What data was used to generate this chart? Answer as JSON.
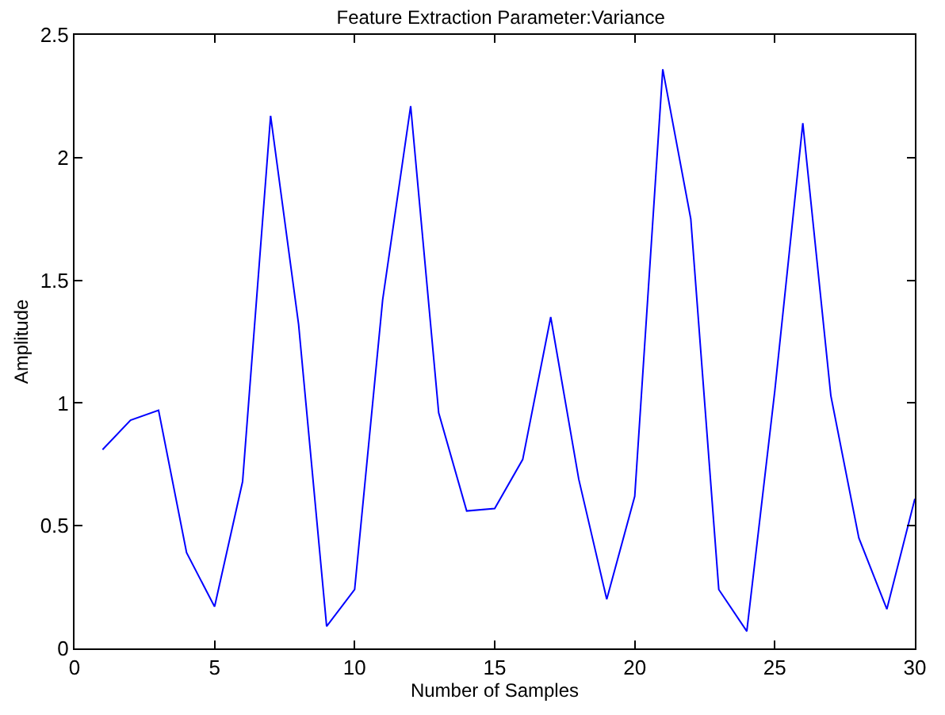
{
  "chart_data": {
    "type": "line",
    "title": "Feature Extraction Parameter:Variance",
    "xlabel": "Number of Samples",
    "ylabel": "Amplitude",
    "x": [
      1,
      2,
      3,
      4,
      5,
      6,
      7,
      8,
      9,
      10,
      11,
      12,
      13,
      14,
      15,
      16,
      17,
      18,
      19,
      20,
      21,
      22,
      23,
      24,
      25,
      26,
      27,
      28,
      29,
      30
    ],
    "series": [
      {
        "color": "#0000ff",
        "values": [
          0.81,
          0.93,
          0.97,
          0.39,
          0.17,
          0.68,
          2.17,
          1.32,
          0.09,
          0.24,
          1.42,
          2.21,
          0.96,
          0.56,
          0.57,
          0.77,
          1.35,
          0.69,
          0.2,
          0.62,
          2.36,
          1.75,
          0.24,
          0.07,
          1.05,
          2.14,
          1.03,
          0.45,
          0.16,
          0.61
        ]
      }
    ],
    "xlim": [
      0,
      30
    ],
    "xticks": [
      0,
      5,
      10,
      15,
      20,
      25,
      30
    ],
    "ylim": [
      0,
      2.5
    ],
    "yticks": [
      0,
      0.5,
      1,
      1.5,
      2,
      2.5
    ],
    "grid": false,
    "legend": false,
    "marker": "none",
    "line_style": "solid"
  }
}
